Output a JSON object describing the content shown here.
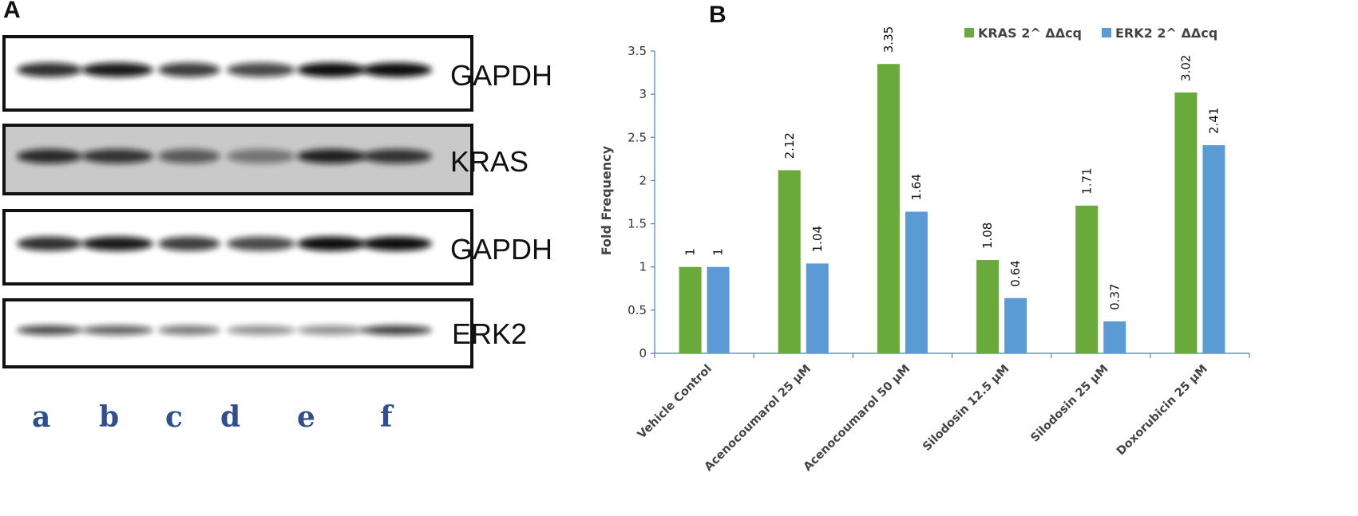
{
  "panel_a": {
    "letter": "A",
    "blots": [
      {
        "label": "GAPDH",
        "background": "#ffffff",
        "bands": [
          0.85,
          0.95,
          0.8,
          0.75,
          1.0,
          1.0
        ]
      },
      {
        "label": "KRAS",
        "background": "#c9c9c9",
        "bands": [
          0.85,
          0.8,
          0.6,
          0.45,
          0.9,
          0.8
        ]
      },
      {
        "label": "GAPDH",
        "background": "#ffffff",
        "bands": [
          0.85,
          0.95,
          0.8,
          0.75,
          1.0,
          1.0
        ]
      },
      {
        "label": "ERK2",
        "background": "#ffffff",
        "bands": [
          0.75,
          0.65,
          0.55,
          0.45,
          0.45,
          0.8
        ]
      }
    ],
    "lanes": [
      "a",
      "b",
      "c",
      "d",
      "e",
      "f"
    ]
  },
  "panel_b": {
    "letter": "B",
    "colors": {
      "kras": "#6aaa3a",
      "erk2": "#5b9bd5"
    }
  },
  "chart_data": {
    "type": "bar",
    "categories": [
      "Vehicle Control",
      "Acenocoumarol 25 µM",
      "Acenocoumarol 50 µM",
      "Silodosin 12.5 µM",
      "Silodosin 25 µM",
      "Doxorubicin 25 µM"
    ],
    "series": [
      {
        "name": "KRAS 2^ ΔΔcq",
        "values": [
          1,
          2.12,
          3.35,
          1.08,
          1.71,
          3.02
        ],
        "labels": [
          "1",
          "2.12",
          "3.35",
          "1.08",
          "1.71",
          "3.02"
        ]
      },
      {
        "name": "ERK2  2^ ΔΔcq",
        "values": [
          1,
          1.04,
          1.64,
          0.64,
          0.37,
          2.41
        ],
        "labels": [
          "1",
          "1.04",
          "1.64",
          "0.64",
          "0.37",
          "2.41"
        ]
      }
    ],
    "ylabel": "Fold Frequency",
    "ylim": [
      0,
      3.5
    ],
    "yticks": [
      "0",
      "0.5",
      "1",
      "1.5",
      "2",
      "2.5",
      "3",
      "3.5"
    ],
    "grid": false,
    "legend_position": "top-right"
  }
}
